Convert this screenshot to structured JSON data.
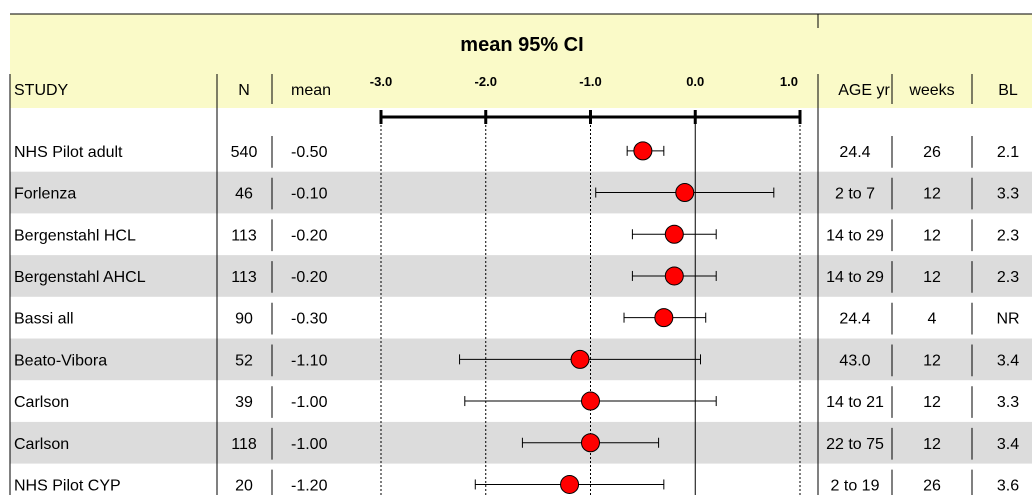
{
  "chart_data": {
    "type": "forest",
    "title": "mean 95% CI",
    "columns": {
      "study": "STUDY",
      "n": "N",
      "mean": "mean",
      "age": "AGE yr",
      "weeks": "weeks",
      "bl": "BL"
    },
    "x_ticks": [
      "-3.0",
      "-2.0",
      "-1.0",
      "0.0",
      "1.0"
    ],
    "xlim": [
      -3.0,
      1.0
    ],
    "grid": true,
    "colors": {
      "header_band": "#fafac8",
      "row_band": "#dcdcdc",
      "marker": "#ff0000"
    },
    "rows": [
      {
        "study": "NHS Pilot adult",
        "n": "540",
        "mean_label": "-0.50",
        "age": "24.4",
        "weeks": "26",
        "bl": "2.1",
        "est": -0.5,
        "lo": -0.65,
        "hi": -0.3
      },
      {
        "study": "Forlenza",
        "n": "46",
        "mean_label": "-0.10",
        "age": "2 to 7",
        "weeks": "12",
        "bl": "3.3",
        "est": -0.1,
        "lo": -0.95,
        "hi": 0.75
      },
      {
        "study": "Bergenstahl HCL",
        "n": "113",
        "mean_label": "-0.20",
        "age": "14 to 29",
        "weeks": "12",
        "bl": "2.3",
        "est": -0.2,
        "lo": -0.6,
        "hi": 0.2
      },
      {
        "study": "Bergenstahl AHCL",
        "n": "113",
        "mean_label": "-0.20",
        "age": "14 to 29",
        "weeks": "12",
        "bl": "2.3",
        "est": -0.2,
        "lo": -0.6,
        "hi": 0.2
      },
      {
        "study": "Bassi all",
        "n": "90",
        "mean_label": "-0.30",
        "age": "24.4",
        "weeks": "4",
        "bl": "NR",
        "est": -0.3,
        "lo": -0.68,
        "hi": 0.1
      },
      {
        "study": "Beato-Vibora",
        "n": "52",
        "mean_label": "-1.10",
        "age": "43.0",
        "weeks": "12",
        "bl": "3.4",
        "est": -1.1,
        "lo": -2.25,
        "hi": 0.05
      },
      {
        "study": "Carlson",
        "n": "39",
        "mean_label": "-1.00",
        "age": "14 to 21",
        "weeks": "12",
        "bl": "3.3",
        "est": -1.0,
        "lo": -2.2,
        "hi": 0.2
      },
      {
        "study": "Carlson",
        "n": "118",
        "mean_label": "-1.00",
        "age": "22 to 75",
        "weeks": "12",
        "bl": "3.4",
        "est": -1.0,
        "lo": -1.65,
        "hi": -0.35
      },
      {
        "study": "NHS Pilot CYP",
        "n": "20",
        "mean_label": "-1.20",
        "age": "2 to 19",
        "weeks": "26",
        "bl": "3.6",
        "est": -1.2,
        "lo": -2.1,
        "hi": -0.3
      }
    ]
  }
}
